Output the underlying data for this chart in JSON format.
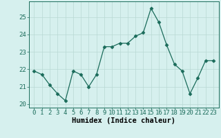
{
  "x": [
    0,
    1,
    2,
    3,
    4,
    5,
    6,
    7,
    8,
    9,
    10,
    11,
    12,
    13,
    14,
    15,
    16,
    17,
    18,
    19,
    20,
    21,
    22,
    23
  ],
  "y": [
    21.9,
    21.7,
    21.1,
    20.6,
    20.2,
    21.9,
    21.7,
    21.0,
    21.7,
    23.3,
    23.3,
    23.5,
    23.5,
    23.9,
    24.1,
    25.5,
    24.7,
    23.4,
    22.3,
    21.9,
    20.6,
    21.5,
    22.5,
    22.5
  ],
  "line_color": "#1a6b5a",
  "marker": "D",
  "marker_color": "#1a6b5a",
  "bg_color": "#d6f0ee",
  "grid_color": "#b8d8d4",
  "xlabel": "Humidex (Indice chaleur)",
  "ylim": [
    19.8,
    25.9
  ],
  "yticks": [
    20,
    21,
    22,
    23,
    24,
    25
  ],
  "xticks": [
    0,
    1,
    2,
    3,
    4,
    5,
    6,
    7,
    8,
    9,
    10,
    11,
    12,
    13,
    14,
    15,
    16,
    17,
    18,
    19,
    20,
    21,
    22,
    23
  ],
  "xlabel_fontsize": 7.5,
  "tick_fontsize": 6.5,
  "markersize": 2.5,
  "linewidth": 0.9
}
